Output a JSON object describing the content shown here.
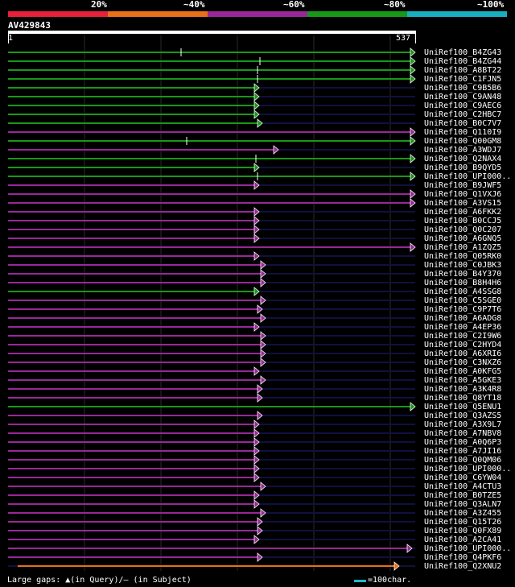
{
  "legend": {
    "labels": [
      "20%",
      "~40%",
      "~60%",
      "~80%",
      "~100%"
    ],
    "colors": [
      "#e8203a",
      "#e87018",
      "#982898",
      "#189818",
      "#18b0c0"
    ]
  },
  "query": {
    "name": "AV429843",
    "start": "1",
    "end": "537"
  },
  "hits": [
    {
      "name": "UniRef100_B4ZG43",
      "color": "#189818",
      "end": 516,
      "marks": [
        225
      ]
    },
    {
      "name": "UniRef100_B4ZG44",
      "color": "#189818",
      "end": 516,
      "marks": [
        323
      ]
    },
    {
      "name": "UniRef100_A8BT22",
      "color": "#189818",
      "end": 516,
      "marks": [
        320
      ]
    },
    {
      "name": "UniRef100_C1FJN5",
      "color": "#189818",
      "end": 516,
      "marks": [
        320
      ]
    },
    {
      "name": "UniRef100_C9B5B6",
      "color": "#189818",
      "end": 322,
      "marks": []
    },
    {
      "name": "UniRef100_C9AN48",
      "color": "#189818",
      "end": 322,
      "marks": []
    },
    {
      "name": "UniRef100_C9AEC6",
      "color": "#189818",
      "end": 322,
      "marks": []
    },
    {
      "name": "UniRef100_C2HBC7",
      "color": "#189818",
      "end": 322,
      "marks": []
    },
    {
      "name": "UniRef100_B0C7V7",
      "color": "#189818",
      "end": 326,
      "marks": []
    },
    {
      "name": "UniRef100_Q110I9",
      "color": "#982898",
      "end": 516,
      "marks": []
    },
    {
      "name": "UniRef100_Q00GM8",
      "color": "#189818",
      "end": 516,
      "marks": [
        232
      ]
    },
    {
      "name": "UniRef100_A3WDJ7",
      "color": "#982898",
      "end": 346,
      "marks": []
    },
    {
      "name": "UniRef100_Q2NAX4",
      "color": "#189818",
      "end": 516,
      "marks": [
        318
      ]
    },
    {
      "name": "UniRef100_B9QYD5",
      "color": "#189818",
      "end": 322,
      "marks": []
    },
    {
      "name": "UniRef100_UPI000..",
      "color": "#189818",
      "end": 516,
      "marks": [
        320
      ]
    },
    {
      "name": "UniRef100_B9JWF5",
      "color": "#982898",
      "end": 322,
      "marks": []
    },
    {
      "name": "UniRef100_Q1VXJ6",
      "color": "#982898",
      "end": 516,
      "marks": []
    },
    {
      "name": "UniRef100_A3VS15",
      "color": "#982898",
      "end": 516,
      "marks": []
    },
    {
      "name": "UniRef100_A6FKK2",
      "color": "#982898",
      "end": 322,
      "marks": []
    },
    {
      "name": "UniRef100_B0CCJ5",
      "color": "#982898",
      "end": 322,
      "marks": []
    },
    {
      "name": "UniRef100_Q0C207",
      "color": "#982898",
      "end": 322,
      "marks": []
    },
    {
      "name": "UniRef100_A6GNQ5",
      "color": "#982898",
      "end": 322,
      "marks": []
    },
    {
      "name": "UniRef100_A1ZQZ5",
      "color": "#982898",
      "end": 516,
      "marks": []
    },
    {
      "name": "UniRef100_Q05RK0",
      "color": "#982898",
      "end": 322,
      "marks": []
    },
    {
      "name": "UniRef100_C0JBK3",
      "color": "#982898",
      "end": 330,
      "marks": []
    },
    {
      "name": "UniRef100_B4Y370",
      "color": "#982898",
      "end": 330,
      "marks": []
    },
    {
      "name": "UniRef100_B8H4H6",
      "color": "#982898",
      "end": 330,
      "marks": []
    },
    {
      "name": "UniRef100_A4SSG8",
      "color": "#189818",
      "end": 322,
      "marks": []
    },
    {
      "name": "UniRef100_C5SGE0",
      "color": "#982898",
      "end": 330,
      "marks": []
    },
    {
      "name": "UniRef100_C9P7T6",
      "color": "#982898",
      "end": 326,
      "marks": []
    },
    {
      "name": "UniRef100_A6ADG8",
      "color": "#982898",
      "end": 330,
      "marks": []
    },
    {
      "name": "UniRef100_A4EP36",
      "color": "#982898",
      "end": 322,
      "marks": []
    },
    {
      "name": "UniRef100_C2I9W6",
      "color": "#982898",
      "end": 330,
      "marks": []
    },
    {
      "name": "UniRef100_C2HYD4",
      "color": "#982898",
      "end": 330,
      "marks": []
    },
    {
      "name": "UniRef100_A6XRI6",
      "color": "#982898",
      "end": 330,
      "marks": []
    },
    {
      "name": "UniRef100_C3NXZ6",
      "color": "#982898",
      "end": 330,
      "marks": []
    },
    {
      "name": "UniRef100_A0KFG5",
      "color": "#982898",
      "end": 322,
      "marks": []
    },
    {
      "name": "UniRef100_A5GKE3",
      "color": "#982898",
      "end": 330,
      "marks": []
    },
    {
      "name": "UniRef100_A3K4R8",
      "color": "#982898",
      "end": 326,
      "marks": []
    },
    {
      "name": "UniRef100_Q8YT18",
      "color": "#982898",
      "end": 326,
      "marks": []
    },
    {
      "name": "UniRef100_Q5ENU1",
      "color": "#189818",
      "end": 516,
      "marks": []
    },
    {
      "name": "UniRef100_Q3AZS5",
      "color": "#982898",
      "end": 326,
      "marks": []
    },
    {
      "name": "UniRef100_A3X9L7",
      "color": "#982898",
      "end": 322,
      "marks": []
    },
    {
      "name": "UniRef100_A7NBV8",
      "color": "#982898",
      "end": 322,
      "marks": []
    },
    {
      "name": "UniRef100_A0Q6P3",
      "color": "#982898",
      "end": 322,
      "marks": []
    },
    {
      "name": "UniRef100_A7JI16",
      "color": "#982898",
      "end": 322,
      "marks": []
    },
    {
      "name": "UniRef100_Q0QM06",
      "color": "#982898",
      "end": 322,
      "marks": []
    },
    {
      "name": "UniRef100_UPI000..",
      "color": "#982898",
      "end": 322,
      "marks": []
    },
    {
      "name": "UniRef100_C6YW04",
      "color": "#982898",
      "end": 322,
      "marks": []
    },
    {
      "name": "UniRef100_A4CTU3",
      "color": "#982898",
      "end": 330,
      "marks": []
    },
    {
      "name": "UniRef100_B0TZE5",
      "color": "#982898",
      "end": 322,
      "marks": []
    },
    {
      "name": "UniRef100_Q3ALN7",
      "color": "#982898",
      "end": 322,
      "marks": []
    },
    {
      "name": "UniRef100_A3Z455",
      "color": "#982898",
      "end": 330,
      "marks": []
    },
    {
      "name": "UniRef100_Q15T26",
      "color": "#982898",
      "end": 326,
      "marks": []
    },
    {
      "name": "UniRef100_Q0FX89",
      "color": "#982898",
      "end": 326,
      "marks": []
    },
    {
      "name": "UniRef100_A2CA41",
      "color": "#982898",
      "end": 322,
      "marks": []
    },
    {
      "name": "UniRef100_UPI000..",
      "color": "#982898",
      "end": 512,
      "marks": []
    },
    {
      "name": "UniRef100_Q4PKF6",
      "color": "#982898",
      "end": 326,
      "marks": []
    },
    {
      "name": "UniRef100_Q2XNU2",
      "color": "#e87018",
      "end": 496,
      "marks": []
    }
  ],
  "footer": {
    "gaps_text": "Large gaps: ▲(in Query)/— (in Subject)",
    "scale_text": "=100char."
  }
}
